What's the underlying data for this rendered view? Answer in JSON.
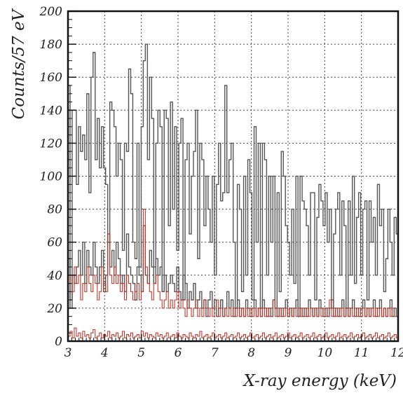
{
  "chart_data": {
    "type": "line",
    "subtype": "step-histogram",
    "xlabel": "X-ray energy (keV)",
    "ylabel": "Counts/57 eV",
    "xlim": [
      3,
      12
    ],
    "ylim": [
      0,
      200
    ],
    "xticks": [
      3,
      4,
      5,
      6,
      7,
      8,
      9,
      10,
      11,
      12
    ],
    "yticks": [
      0,
      20,
      40,
      60,
      80,
      100,
      120,
      140,
      160,
      180,
      200
    ],
    "grid": true,
    "gridStyle": "dotted",
    "colors": {
      "dark": "#555555",
      "red": "#c0392b",
      "frame": "#111111",
      "grid": "#444444"
    },
    "series": [
      {
        "color": "#555555",
        "bin_width": 0.057,
        "x_start": 3.0,
        "values": [
          155,
          20,
          140,
          140,
          95,
          130,
          115,
          125,
          110,
          150,
          90,
          160,
          175,
          110,
          135,
          105,
          130,
          105,
          95,
          60,
          145,
          140,
          130,
          100,
          120,
          110,
          55,
          120,
          115,
          165,
          150,
          60,
          50,
          120,
          45,
          130,
          170,
          180,
          110,
          160,
          135,
          45,
          120,
          140,
          130,
          30,
          140,
          135,
          70,
          145,
          80,
          130,
          55,
          120,
          135,
          25,
          110,
          120,
          65,
          100,
          115,
          140,
          50,
          120,
          110,
          70,
          100,
          80,
          60,
          100,
          40,
          95,
          120,
          85,
          90,
          155,
          90,
          110,
          120,
          60,
          20,
          95,
          80,
          30,
          100,
          40,
          110,
          90,
          25,
          130,
          60,
          120,
          20,
          120,
          110,
          40,
          100,
          60,
          100,
          20,
          90,
          30,
          115,
          100,
          70,
          60,
          40,
          80,
          35,
          100,
          15,
          100,
          85,
          80,
          70,
          40,
          90,
          90,
          25,
          75,
          95,
          85,
          70,
          90,
          60,
          80,
          20,
          65,
          80,
          90,
          40,
          85,
          70,
          20,
          85,
          40,
          100,
          35,
          75,
          90,
          40,
          80,
          85,
          25,
          85,
          60,
          75,
          40,
          95,
          70,
          80,
          30,
          50,
          80,
          60,
          40,
          75,
          65
        ]
      },
      {
        "color": "#555555",
        "bin_width": 0.057,
        "x_start": 3.0,
        "values": [
          50,
          25,
          40,
          35,
          45,
          55,
          40,
          60,
          35,
          55,
          45,
          40,
          60,
          45,
          35,
          45,
          55,
          30,
          40,
          65,
          45,
          55,
          40,
          60,
          50,
          35,
          40,
          30,
          65,
          45,
          40,
          35,
          25,
          45,
          40,
          30,
          70,
          40,
          35,
          55,
          45,
          35,
          50,
          40,
          45,
          30,
          40,
          30,
          35,
          40,
          35,
          30,
          45,
          30,
          25,
          40,
          35,
          20,
          30,
          25,
          35,
          20,
          25,
          30,
          20,
          25,
          15,
          25,
          30,
          20,
          25,
          15,
          20,
          25,
          15,
          20,
          30,
          20,
          25,
          15,
          20,
          25,
          15,
          20,
          15,
          25,
          20,
          15,
          20,
          25,
          15,
          20,
          15,
          25,
          20,
          15,
          20,
          15,
          25,
          20,
          15,
          20,
          15,
          20,
          25,
          15,
          20,
          15,
          20,
          25,
          15,
          20,
          15,
          20,
          15,
          25,
          20,
          15,
          20,
          15,
          25,
          20,
          15,
          20,
          15,
          20,
          25,
          15,
          20,
          15,
          20,
          25,
          15,
          20,
          15,
          20,
          25,
          15,
          20,
          15,
          20,
          25,
          15,
          20,
          15,
          20,
          25,
          15,
          20,
          25,
          15,
          20,
          15,
          20,
          25,
          15,
          20,
          15
        ]
      },
      {
        "color": "#c0392b",
        "bin_width": 0.057,
        "x_start": 3.0,
        "values": [
          35,
          40,
          30,
          45,
          35,
          40,
          25,
          35,
          30,
          45,
          35,
          30,
          40,
          35,
          25,
          30,
          45,
          35,
          30,
          65,
          40,
          35,
          45,
          35,
          40,
          30,
          35,
          25,
          40,
          35,
          30,
          25,
          30,
          35,
          25,
          30,
          80,
          45,
          35,
          30,
          25,
          35,
          40,
          30,
          25,
          20,
          25,
          30,
          20,
          25,
          20,
          25,
          30,
          20,
          25,
          20,
          15,
          25,
          20,
          15,
          20,
          25,
          15,
          20,
          15,
          25,
          20,
          15,
          20,
          15,
          20,
          25,
          15,
          20,
          15,
          20,
          15,
          20,
          15,
          20,
          15,
          20,
          15,
          20,
          15,
          20,
          15,
          20,
          15,
          20,
          15,
          20,
          15,
          20,
          15,
          20,
          15,
          20,
          25,
          15,
          20,
          15,
          20,
          15,
          20,
          15,
          20,
          15,
          20,
          15,
          20,
          15,
          20,
          15,
          20,
          15,
          20,
          15,
          20,
          15,
          20,
          15,
          20,
          15,
          20,
          25,
          15,
          20,
          15,
          20,
          15,
          20,
          15,
          20,
          15,
          20,
          15,
          20,
          15,
          20,
          15,
          20,
          15,
          20,
          15,
          20,
          15,
          20,
          15,
          20,
          15,
          20,
          15,
          20,
          15,
          20,
          15
        ]
      },
      {
        "color": "#c0392b",
        "bin_width": 0.057,
        "x_start": 3.0,
        "values": [
          3,
          6,
          2,
          8,
          3,
          5,
          2,
          6,
          3,
          4,
          2,
          5,
          7,
          2,
          3,
          5,
          2,
          4,
          3,
          6,
          2,
          4,
          3,
          5,
          2,
          3,
          6,
          2,
          4,
          3,
          5,
          2,
          3,
          4,
          2,
          6,
          3,
          5,
          2,
          4,
          3,
          2,
          5,
          3,
          4,
          2,
          3,
          5,
          2,
          3,
          4,
          2,
          5,
          3,
          2,
          4,
          3,
          2,
          5,
          3,
          2,
          4,
          3,
          6,
          2,
          3,
          4,
          2,
          3,
          5,
          2,
          3,
          4,
          2,
          3,
          5,
          2,
          3,
          4,
          2,
          3,
          5,
          2,
          3,
          4,
          2,
          3,
          5,
          2,
          3,
          4,
          2,
          3,
          5,
          2,
          3,
          4,
          2,
          3,
          5,
          2,
          3,
          4,
          2,
          3,
          5,
          2,
          3,
          4,
          2,
          3,
          5,
          2,
          3,
          4,
          2,
          3,
          5,
          2,
          3,
          4,
          2,
          3,
          5,
          2,
          3,
          4,
          2,
          3,
          5,
          2,
          3,
          4,
          2,
          3,
          5,
          2,
          3,
          4,
          2,
          3,
          5,
          2,
          3,
          4,
          2,
          3,
          5,
          2,
          3,
          4,
          2,
          3,
          5,
          2,
          3,
          4,
          2
        ]
      }
    ]
  }
}
